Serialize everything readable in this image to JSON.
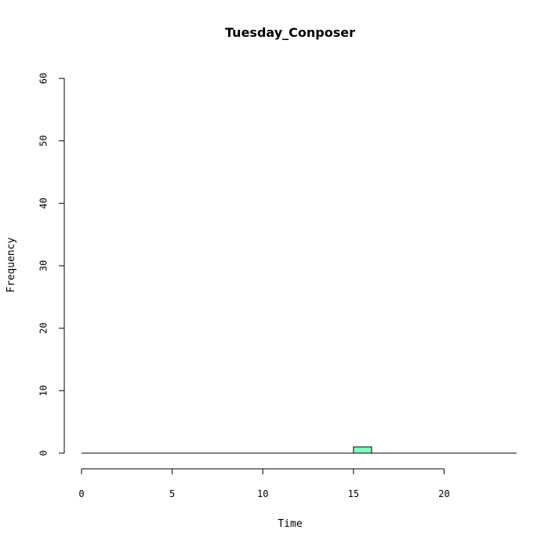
{
  "chart_data": {
    "type": "bar",
    "title": "Tuesday_Conposer",
    "xlabel": "Time",
    "ylabel": "Frequency",
    "xlim": [
      0,
      24
    ],
    "ylim": [
      0,
      60
    ],
    "x_ticks": [
      0,
      5,
      10,
      15,
      20
    ],
    "y_ticks": [
      0,
      10,
      20,
      30,
      40,
      50,
      60
    ],
    "bin_width": 1,
    "bins": [
      {
        "start": 15,
        "end": 16,
        "count": 1
      }
    ],
    "bar_color": "#7FFFC0",
    "grid": false
  }
}
